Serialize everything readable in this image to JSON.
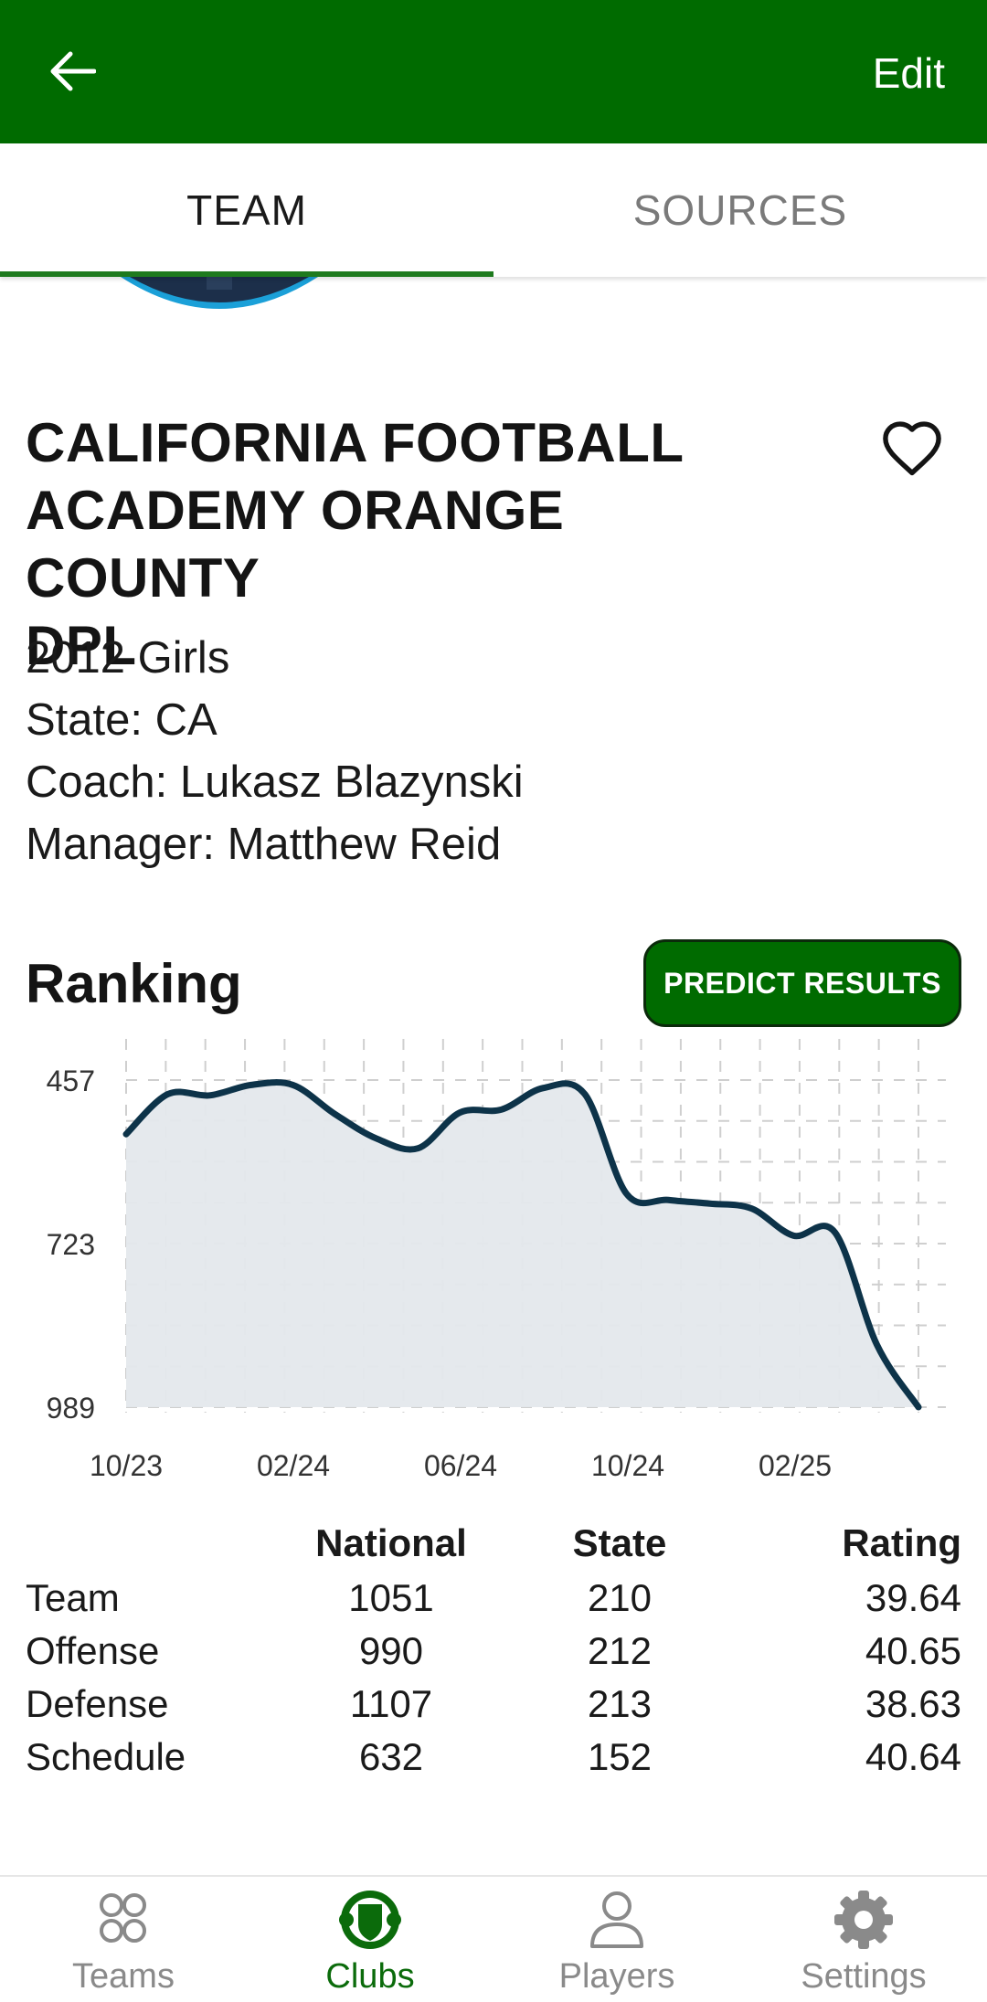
{
  "appbar": {
    "edit_label": "Edit",
    "color": "#006b00"
  },
  "tabs": [
    {
      "label": "TEAM",
      "active": true
    },
    {
      "label": "SOURCES",
      "active": false
    }
  ],
  "team": {
    "name_lines": [
      "CALIFORNIA FOOTBALL",
      "ACADEMY ORANGE COUNTY",
      "DPL"
    ],
    "age_group": "2012 Girls",
    "state": "State: CA",
    "coach": "Coach: Lukasz Blazynski",
    "manager": "Manager: Matthew Reid"
  },
  "ranking": {
    "title": "Ranking",
    "predict_label": "PREDICT RESULTS"
  },
  "chart_data": {
    "type": "area",
    "y_inverted": true,
    "ylim": [
      457,
      989
    ],
    "y_ticks": [
      "457",
      "723",
      "989"
    ],
    "x_ticks": [
      "10/23",
      "02/24",
      "06/24",
      "10/24",
      "02/25"
    ],
    "grid": true,
    "line_color": "#0d3349",
    "fill_color": "#e4e8ec",
    "series": [
      {
        "x": [
          "10/23",
          "11/23",
          "12/23",
          "01/24",
          "02/24",
          "03/24",
          "04/24",
          "05/24",
          "06/24",
          "07/24",
          "08/24",
          "09/24",
          "10/24",
          "11/24",
          "12/24",
          "01/25",
          "02/25",
          "03/25",
          "03/25",
          "04/25"
        ],
        "values": [
          545,
          480,
          482,
          465,
          465,
          512,
          552,
          568,
          510,
          505,
          470,
          480,
          642,
          652,
          658,
          666,
          710,
          705,
          887,
          989
        ]
      }
    ]
  },
  "stats": {
    "headers": [
      "",
      "National",
      "State",
      "Rating"
    ],
    "rows": [
      {
        "label": "Team",
        "national": "1051",
        "state": "210",
        "rating": "39.64"
      },
      {
        "label": "Offense",
        "national": "990",
        "state": "212",
        "rating": "40.65"
      },
      {
        "label": "Defense",
        "national": "1107",
        "state": "213",
        "rating": "38.63"
      },
      {
        "label": "Schedule",
        "national": "632",
        "state": "152",
        "rating": "40.64"
      }
    ]
  },
  "bottom_nav": [
    {
      "label": "Teams",
      "icon": "teams-icon",
      "active": false
    },
    {
      "label": "Clubs",
      "icon": "clubs-icon",
      "active": true
    },
    {
      "label": "Players",
      "icon": "players-icon",
      "active": false
    },
    {
      "label": "Settings",
      "icon": "settings-icon",
      "active": false
    }
  ]
}
